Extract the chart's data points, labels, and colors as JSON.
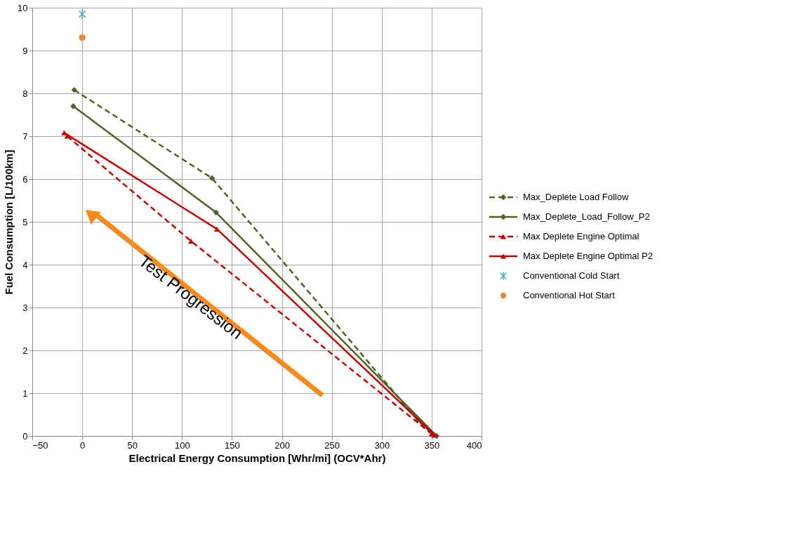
{
  "chart_data": {
    "type": "line",
    "xlabel": "Electrical Energy Consumption [Whr/mi] (OCV*Ahr)",
    "ylabel": "Fuel Consumption [L/100km]",
    "xlim": [
      -50,
      400
    ],
    "xticks": [
      -50,
      0,
      50,
      100,
      150,
      200,
      250,
      300,
      350,
      400
    ],
    "ylim": [
      0,
      10
    ],
    "yticks": [
      0,
      1,
      2,
      3,
      4,
      5,
      6,
      7,
      8,
      9,
      10
    ],
    "grid": true,
    "legend": "right",
    "annotations": [
      "Test Progression"
    ],
    "series": [
      {
        "name": "Max_Deplete Load Follow",
        "color": "#4f6228",
        "line_style": "dashed",
        "marker": "diamond",
        "x": [
          -8,
          130,
          336,
          352
        ],
        "values": [
          8.08,
          6.02,
          0.37,
          0.03
        ]
      },
      {
        "name": "Max_Deplete_Load_Follow_P2",
        "color": "#4f6228",
        "line_style": "solid",
        "marker": "diamond",
        "x": [
          -9,
          134,
          355
        ],
        "values": [
          7.7,
          5.22,
          0.0
        ]
      },
      {
        "name": "Max Deplete Engine Optimal",
        "color": "#c00000",
        "line_style": "dashed",
        "marker": "triangle",
        "x": [
          -15,
          109,
          350
        ],
        "values": [
          7.0,
          4.55,
          0.05
        ]
      },
      {
        "name": "Max Deplete Engine Optimal P2",
        "color": "#c00000",
        "line_style": "solid",
        "marker": "triangle",
        "x": [
          -18,
          135,
          353
        ],
        "values": [
          7.08,
          4.83,
          0.02
        ]
      },
      {
        "name": "Conventional Cold Start",
        "type": "scatter",
        "color": "#4bacc6",
        "marker": "cross",
        "x": [
          0
        ],
        "values": [
          9.85
        ]
      },
      {
        "name": "Conventional Hot Start",
        "type": "scatter",
        "color": "#e3893f",
        "marker": "circle",
        "x": [
          0
        ],
        "values": [
          9.3
        ]
      }
    ]
  }
}
